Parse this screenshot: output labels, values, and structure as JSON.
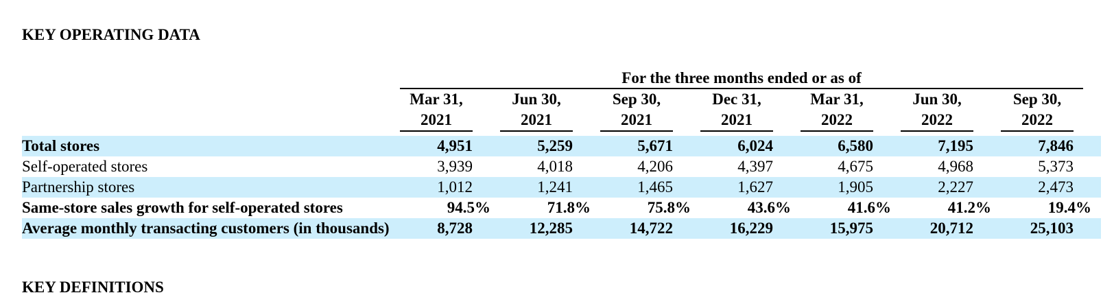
{
  "title": "KEY OPERATING DATA",
  "table": {
    "group_header": "For the three months ended or as of",
    "columns": [
      {
        "month": "Mar 31,",
        "year": "2021"
      },
      {
        "month": "Jun 30,",
        "year": "2021"
      },
      {
        "month": "Sep 30,",
        "year": "2021"
      },
      {
        "month": "Dec 31,",
        "year": "2021"
      },
      {
        "month": "Mar 31,",
        "year": "2022"
      },
      {
        "month": "Jun 30,",
        "year": "2022"
      },
      {
        "month": "Sep 30,",
        "year": "2022"
      }
    ],
    "rows": [
      {
        "label": "Total stores",
        "bold": true,
        "shaded": true,
        "values": [
          "4,951",
          "5,259",
          "5,671",
          "6,024",
          "6,580",
          "7,195",
          "7,846"
        ]
      },
      {
        "label": "Self-operated stores",
        "bold": false,
        "shaded": false,
        "values": [
          "3,939",
          "4,018",
          "4,206",
          "4,397",
          "4,675",
          "4,968",
          "5,373"
        ]
      },
      {
        "label": "Partnership stores",
        "bold": false,
        "shaded": true,
        "values": [
          "1,012",
          "1,241",
          "1,465",
          "1,627",
          "1,905",
          "2,227",
          "2,473"
        ]
      },
      {
        "label": "Same-store sales growth for self-operated stores",
        "bold": true,
        "shaded": false,
        "percent": true,
        "values": [
          "94.5%",
          "71.8%",
          "75.8%",
          "43.6%",
          "41.6%",
          "41.2%",
          "19.4%"
        ]
      },
      {
        "label": "Average monthly transacting customers (in thousands)",
        "bold": true,
        "shaded": true,
        "values": [
          "8,728",
          "12,285",
          "14,722",
          "16,229",
          "15,975",
          "20,712",
          "25,103"
        ]
      }
    ]
  },
  "footer": "KEY DEFINITIONS"
}
